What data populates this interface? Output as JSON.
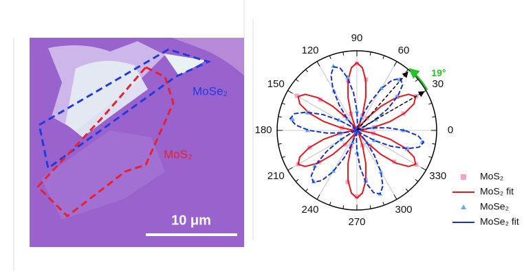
{
  "image": {
    "labels": [
      "MoSe₂",
      "MoS₂"
    ],
    "scale_bar": "10 μm"
  },
  "chart_data": {
    "type": "polar",
    "rlim": [
      0,
      1
    ],
    "thetaticks": [
      0,
      30,
      60,
      90,
      120,
      150,
      180,
      210,
      240,
      270,
      300,
      330
    ],
    "annotation": "19°",
    "arrow_angles": [
      30,
      49
    ],
    "series": [
      {
        "name": "MoS₂",
        "kind": "scatter",
        "marker": "square",
        "color": "#f3a3c8",
        "theta": [
          0,
          10,
          20,
          30,
          40,
          50,
          60,
          70,
          80,
          90,
          100,
          110,
          120,
          130,
          140,
          150,
          160,
          170,
          180,
          190,
          200,
          210,
          220,
          230,
          240,
          250,
          260,
          270,
          280,
          290,
          300,
          310,
          320,
          330,
          340,
          350
        ],
        "values": [
          0.02,
          0.23,
          0.62,
          0.86,
          0.66,
          0.2,
          0.03,
          0.2,
          0.65,
          0.84,
          0.63,
          0.22,
          0.01,
          0.24,
          0.6,
          0.87,
          0.65,
          0.19,
          0.04,
          0.22,
          0.63,
          0.85,
          0.62,
          0.23,
          0.02,
          0.21,
          0.66,
          0.83,
          0.64,
          0.2,
          0.03,
          0.25,
          0.61,
          0.86,
          0.67,
          0.21
        ]
      },
      {
        "name": "MoS₂ fit",
        "kind": "line",
        "color": "#e8141b",
        "theta": [
          0,
          5,
          10,
          15,
          20,
          25,
          30,
          35,
          40,
          45,
          50,
          55,
          60,
          65,
          70,
          75,
          80,
          85,
          90,
          95,
          100,
          105,
          110,
          115,
          120,
          125,
          130,
          135,
          140,
          145,
          150,
          155,
          160,
          165,
          170,
          175,
          180,
          185,
          190,
          195,
          200,
          205,
          210,
          215,
          220,
          225,
          230,
          235,
          240,
          245,
          250,
          255,
          260,
          265,
          270,
          275,
          280,
          285,
          290,
          295,
          300,
          305,
          310,
          315,
          320,
          325,
          330,
          335,
          340,
          345,
          350,
          355
        ],
        "values": [
          0,
          0.06,
          0.21,
          0.43,
          0.64,
          0.79,
          0.85,
          0.79,
          0.64,
          0.43,
          0.21,
          0.06,
          0,
          0.06,
          0.21,
          0.43,
          0.64,
          0.79,
          0.85,
          0.79,
          0.64,
          0.43,
          0.21,
          0.06,
          0,
          0.06,
          0.21,
          0.43,
          0.64,
          0.79,
          0.85,
          0.79,
          0.64,
          0.43,
          0.21,
          0.06,
          0,
          0.06,
          0.21,
          0.43,
          0.64,
          0.79,
          0.85,
          0.79,
          0.64,
          0.43,
          0.21,
          0.06,
          0,
          0.06,
          0.21,
          0.43,
          0.64,
          0.79,
          0.85,
          0.79,
          0.64,
          0.43,
          0.21,
          0.06,
          0,
          0.06,
          0.21,
          0.43,
          0.64,
          0.79,
          0.85,
          0.79,
          0.64,
          0.43,
          0.21,
          0.06
        ]
      },
      {
        "name": "MoSe₂",
        "kind": "scatter",
        "marker": "triangle",
        "color": "#5db3e8",
        "theta": [
          0,
          10,
          20,
          30,
          40,
          50,
          60,
          70,
          80,
          90,
          100,
          110,
          120,
          130,
          140,
          150,
          160,
          170,
          180,
          190,
          200,
          210,
          220,
          230,
          240,
          250,
          260,
          270,
          280,
          290,
          300,
          310,
          320,
          330,
          340,
          350
        ],
        "values": [
          0.58,
          0.2,
          0.02,
          0.27,
          0.65,
          0.83,
          0.61,
          0.17,
          0.03,
          0.24,
          0.68,
          0.86,
          0.57,
          0.19,
          0.01,
          0.26,
          0.66,
          0.82,
          0.62,
          0.21,
          0.02,
          0.23,
          0.69,
          0.84,
          0.59,
          0.16,
          0.04,
          0.28,
          0.64,
          0.85,
          0.6,
          0.2,
          0.03,
          0.25,
          0.67,
          0.83
        ]
      },
      {
        "name": "MoSe₂ fit",
        "kind": "line",
        "color": "#1a2ecc",
        "theta": [
          0,
          5,
          10,
          15,
          20,
          25,
          30,
          35,
          40,
          45,
          50,
          55,
          60,
          65,
          70,
          75,
          80,
          85,
          90,
          95,
          100,
          105,
          110,
          115,
          120,
          125,
          130,
          135,
          140,
          145,
          150,
          155,
          160,
          165,
          170,
          175,
          180,
          185,
          190,
          195,
          200,
          205,
          210,
          215,
          220,
          225,
          230,
          235,
          240,
          245,
          250,
          255,
          260,
          265,
          270,
          275,
          280,
          285,
          290,
          295,
          300,
          305,
          310,
          315,
          320,
          325,
          330,
          335,
          340,
          345,
          350,
          355
        ],
        "values": [
          0.6,
          0.38,
          0.18,
          0.04,
          0,
          0.08,
          0.25,
          0.47,
          0.67,
          0.81,
          0.85,
          0.77,
          0.6,
          0.38,
          0.18,
          0.04,
          0,
          0.08,
          0.25,
          0.47,
          0.67,
          0.81,
          0.85,
          0.77,
          0.6,
          0.38,
          0.18,
          0.04,
          0,
          0.08,
          0.25,
          0.47,
          0.67,
          0.81,
          0.85,
          0.77,
          0.6,
          0.38,
          0.18,
          0.04,
          0,
          0.08,
          0.25,
          0.47,
          0.67,
          0.81,
          0.85,
          0.77,
          0.6,
          0.38,
          0.18,
          0.04,
          0,
          0.08,
          0.25,
          0.47,
          0.67,
          0.81,
          0.85,
          0.77,
          0.6,
          0.38,
          0.18,
          0.04,
          0,
          0.08,
          0.25,
          0.47,
          0.67,
          0.81,
          0.85,
          0.77
        ]
      }
    ]
  }
}
